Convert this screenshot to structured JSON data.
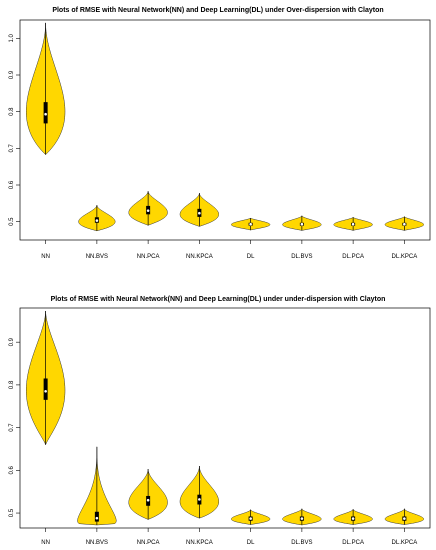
{
  "chart_data": [
    {
      "type": "violin",
      "title": "Plots of RMSE with Neural Network(NN) and Deep Learning(DL) under Over-dispersion with Clayton",
      "xlabel": "",
      "ylabel": "",
      "ylim": [
        0.45,
        1.05
      ],
      "yticks": [
        0.5,
        0.6,
        0.7,
        0.8,
        0.9,
        1.0
      ],
      "ytick_labels": [
        "0.5",
        "0.6",
        "0.7",
        "0.8",
        "0.9",
        "1.0"
      ],
      "categories": [
        "NN",
        "NN.BVS",
        "NN.PCA",
        "NN.KPCA",
        "DL",
        "DL.BVS",
        "DL.PCA",
        "DL.KPCA"
      ],
      "fill_color": "#FFD700",
      "violins": [
        {
          "min": 0.683,
          "q1": 0.768,
          "median": 0.793,
          "q3": 0.826,
          "max": 1.042,
          "mode": 0.8,
          "width": 0.9
        },
        {
          "min": 0.475,
          "q1": 0.497,
          "median": 0.503,
          "q3": 0.512,
          "max": 0.545,
          "mode": 0.5,
          "width": 0.85
        },
        {
          "min": 0.49,
          "q1": 0.52,
          "median": 0.53,
          "q3": 0.543,
          "max": 0.583,
          "mode": 0.525,
          "width": 0.9
        },
        {
          "min": 0.487,
          "q1": 0.513,
          "median": 0.523,
          "q3": 0.535,
          "max": 0.578,
          "mode": 0.52,
          "width": 0.9
        },
        {
          "min": 0.477,
          "q1": 0.489,
          "median": 0.493,
          "q3": 0.497,
          "max": 0.51,
          "mode": 0.492,
          "width": 0.9
        },
        {
          "min": 0.476,
          "q1": 0.489,
          "median": 0.493,
          "q3": 0.497,
          "max": 0.516,
          "mode": 0.492,
          "width": 0.9
        },
        {
          "min": 0.476,
          "q1": 0.489,
          "median": 0.493,
          "q3": 0.497,
          "max": 0.512,
          "mode": 0.492,
          "width": 0.9
        },
        {
          "min": 0.476,
          "q1": 0.489,
          "median": 0.493,
          "q3": 0.497,
          "max": 0.514,
          "mode": 0.492,
          "width": 0.9
        }
      ]
    },
    {
      "type": "violin",
      "title": "Plots of RMSE with Neural Network(NN) and Deep Learning(DL) under under-dispersion with Clayton",
      "xlabel": "",
      "ylabel": "",
      "ylim": [
        0.465,
        0.98
      ],
      "yticks": [
        0.5,
        0.6,
        0.7,
        0.8,
        0.9
      ],
      "ytick_labels": [
        "0.5",
        "0.6",
        "0.7",
        "0.8",
        "0.9"
      ],
      "categories": [
        "NN",
        "NN.BVS",
        "NN.PCA",
        "NN.KPCA",
        "DL",
        "DL.BVS",
        "DL.PCA",
        "DL.KPCA"
      ],
      "fill_color": "#FFD700",
      "violins": [
        {
          "min": 0.66,
          "q1": 0.765,
          "median": 0.785,
          "q3": 0.815,
          "max": 0.973,
          "mode": 0.787,
          "width": 0.9
        },
        {
          "min": 0.472,
          "q1": 0.48,
          "median": 0.488,
          "q3": 0.503,
          "max": 0.655,
          "mode": 0.482,
          "width": 0.9
        },
        {
          "min": 0.485,
          "q1": 0.517,
          "median": 0.53,
          "q3": 0.54,
          "max": 0.603,
          "mode": 0.525,
          "width": 0.9
        },
        {
          "min": 0.488,
          "q1": 0.52,
          "median": 0.532,
          "q3": 0.543,
          "max": 0.61,
          "mode": 0.527,
          "width": 0.9
        },
        {
          "min": 0.473,
          "q1": 0.482,
          "median": 0.487,
          "q3": 0.492,
          "max": 0.508,
          "mode": 0.486,
          "width": 0.9
        },
        {
          "min": 0.472,
          "q1": 0.482,
          "median": 0.487,
          "q3": 0.492,
          "max": 0.51,
          "mode": 0.486,
          "width": 0.9
        },
        {
          "min": 0.473,
          "q1": 0.482,
          "median": 0.487,
          "q3": 0.492,
          "max": 0.509,
          "mode": 0.486,
          "width": 0.9
        },
        {
          "min": 0.473,
          "q1": 0.482,
          "median": 0.487,
          "q3": 0.492,
          "max": 0.51,
          "mode": 0.486,
          "width": 0.9
        }
      ]
    }
  ]
}
